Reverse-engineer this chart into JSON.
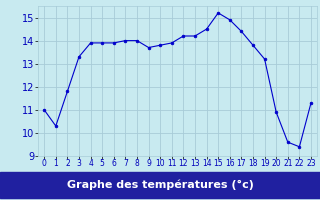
{
  "x": [
    0,
    1,
    2,
    3,
    4,
    5,
    6,
    7,
    8,
    9,
    10,
    11,
    12,
    13,
    14,
    15,
    16,
    17,
    18,
    19,
    20,
    21,
    22,
    23
  ],
  "y": [
    11.0,
    10.3,
    11.8,
    13.3,
    13.9,
    13.9,
    13.9,
    14.0,
    14.0,
    13.7,
    13.8,
    13.9,
    14.2,
    14.2,
    14.5,
    15.2,
    14.9,
    14.4,
    13.8,
    13.2,
    10.9,
    9.6,
    9.4,
    11.3
  ],
  "xlabel": "Graphe des températures (°c)",
  "ylim": [
    9,
    15.5
  ],
  "yticks": [
    9,
    10,
    11,
    12,
    13,
    14,
    15
  ],
  "xlim": [
    -0.5,
    23.5
  ],
  "line_color": "#0000cc",
  "marker_color": "#0000cc",
  "bg_color": "#c8eaf0",
  "grid_color": "#a8ccd8",
  "label_bg": "#2020a0",
  "label_fg": "#ffffff",
  "tick_label_color": "#0000bb",
  "axis_fontsize": 7,
  "xlabel_fontsize": 8
}
